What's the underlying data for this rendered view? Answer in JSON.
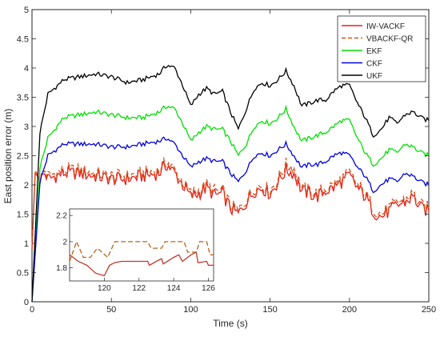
{
  "chart_data": [
    {
      "type": "line",
      "xlabel": "Time (s)",
      "ylabel": "East position error (m)",
      "xlim": [
        0,
        250
      ],
      "ylim": [
        0,
        5
      ],
      "xticks": [
        "0",
        "50",
        "100",
        "150",
        "200",
        "250"
      ],
      "yticks": [
        "0",
        "0.5",
        "1",
        "1.5",
        "2",
        "2.5",
        "3",
        "3.5",
        "4",
        "4.5",
        "5"
      ],
      "grid": false,
      "legend_position": "top-right",
      "series": [
        {
          "name": "IW-VACKF",
          "color": "#e3201b",
          "style": "solid",
          "x": [
            0,
            2,
            5,
            8,
            10,
            20,
            30,
            40,
            50,
            60,
            70,
            80,
            85,
            90,
            95,
            100,
            105,
            110,
            115,
            120,
            125,
            130,
            135,
            140,
            145,
            150,
            155,
            160,
            165,
            170,
            175,
            180,
            185,
            190,
            195,
            200,
            205,
            210,
            215,
            220,
            225,
            230,
            235,
            240,
            245,
            250
          ],
          "values": [
            0.9,
            2.2,
            2.1,
            2.2,
            2.1,
            2.2,
            2.2,
            2.15,
            2.1,
            2.1,
            2.15,
            2.2,
            2.35,
            2.2,
            2.0,
            1.8,
            1.85,
            1.95,
            1.82,
            1.85,
            1.6,
            1.5,
            1.7,
            1.9,
            1.95,
            1.85,
            2.05,
            2.25,
            2.2,
            1.9,
            1.85,
            1.8,
            1.9,
            1.95,
            2.05,
            2.15,
            1.95,
            1.8,
            1.55,
            1.45,
            1.55,
            1.65,
            1.7,
            1.8,
            1.6,
            1.55
          ]
        },
        {
          "name": "VBACKF-QR",
          "color": "#d95319",
          "style": "dashed",
          "x": [
            0,
            2,
            5,
            8,
            10,
            20,
            30,
            40,
            50,
            60,
            70,
            80,
            85,
            90,
            95,
            100,
            105,
            110,
            115,
            120,
            125,
            130,
            135,
            140,
            145,
            150,
            155,
            160,
            165,
            170,
            175,
            180,
            185,
            190,
            195,
            200,
            205,
            210,
            215,
            220,
            225,
            230,
            235,
            240,
            245,
            250
          ],
          "values": [
            0.95,
            2.25,
            2.1,
            2.25,
            2.15,
            2.25,
            2.25,
            2.2,
            2.15,
            2.15,
            2.2,
            2.25,
            2.4,
            2.25,
            2.05,
            1.85,
            1.9,
            2.0,
            1.9,
            1.9,
            1.65,
            1.55,
            1.75,
            1.95,
            2.0,
            1.9,
            2.1,
            2.35,
            2.3,
            1.95,
            1.9,
            1.85,
            1.95,
            2.0,
            2.1,
            2.2,
            2.0,
            1.85,
            1.6,
            1.5,
            1.6,
            1.7,
            1.75,
            1.85,
            1.65,
            1.6
          ]
        },
        {
          "name": "EKF",
          "color": "#00e000",
          "style": "solid",
          "x": [
            0,
            5,
            10,
            20,
            30,
            40,
            50,
            60,
            70,
            80,
            85,
            90,
            95,
            100,
            105,
            110,
            115,
            120,
            125,
            130,
            135,
            140,
            145,
            150,
            155,
            160,
            165,
            170,
            175,
            180,
            185,
            190,
            195,
            200,
            205,
            210,
            215,
            220,
            225,
            230,
            235,
            240,
            245,
            250
          ],
          "values": [
            0.0,
            2.3,
            2.8,
            3.15,
            3.2,
            3.25,
            3.2,
            3.15,
            3.15,
            3.25,
            3.35,
            3.3,
            3.05,
            2.75,
            2.9,
            3.0,
            2.95,
            2.95,
            2.75,
            2.5,
            2.7,
            3.0,
            3.1,
            3.05,
            3.15,
            3.3,
            3.0,
            2.75,
            2.8,
            2.85,
            2.9,
            3.0,
            3.1,
            3.1,
            2.8,
            2.55,
            2.35,
            2.45,
            2.6,
            2.55,
            2.7,
            2.65,
            2.55,
            2.5
          ]
        },
        {
          "name": "CKF",
          "color": "#0000dd",
          "style": "solid",
          "x": [
            0,
            5,
            10,
            20,
            30,
            40,
            50,
            60,
            70,
            80,
            85,
            90,
            95,
            100,
            105,
            110,
            115,
            120,
            125,
            130,
            135,
            140,
            145,
            150,
            155,
            160,
            165,
            170,
            175,
            180,
            185,
            190,
            195,
            200,
            205,
            210,
            215,
            220,
            225,
            230,
            235,
            240,
            245,
            250
          ],
          "values": [
            0.0,
            2.05,
            2.5,
            2.7,
            2.7,
            2.7,
            2.65,
            2.65,
            2.7,
            2.75,
            2.8,
            2.7,
            2.5,
            2.3,
            2.4,
            2.45,
            2.4,
            2.4,
            2.2,
            2.05,
            2.25,
            2.5,
            2.55,
            2.5,
            2.6,
            2.7,
            2.5,
            2.3,
            2.35,
            2.35,
            2.4,
            2.5,
            2.55,
            2.5,
            2.3,
            2.15,
            1.9,
            2.0,
            2.1,
            2.05,
            2.2,
            2.15,
            2.05,
            2.0
          ]
        },
        {
          "name": "UKF",
          "color": "#000000",
          "style": "solid",
          "x": [
            0,
            5,
            10,
            20,
            30,
            40,
            50,
            60,
            70,
            80,
            85,
            90,
            95,
            100,
            105,
            110,
            115,
            120,
            125,
            130,
            135,
            140,
            145,
            150,
            155,
            160,
            165,
            170,
            175,
            180,
            185,
            190,
            195,
            200,
            205,
            210,
            215,
            220,
            225,
            230,
            235,
            240,
            245,
            250
          ],
          "values": [
            0.0,
            2.9,
            3.55,
            3.8,
            3.85,
            3.9,
            3.85,
            3.75,
            3.8,
            3.9,
            4.05,
            4.0,
            3.7,
            3.35,
            3.55,
            3.65,
            3.55,
            3.6,
            3.25,
            2.95,
            3.3,
            3.65,
            3.75,
            3.7,
            3.8,
            3.95,
            3.7,
            3.35,
            3.4,
            3.45,
            3.45,
            3.6,
            3.7,
            3.7,
            3.4,
            3.15,
            2.85,
            2.95,
            3.15,
            3.05,
            3.2,
            3.25,
            3.15,
            3.1
          ]
        }
      ]
    },
    {
      "type": "line",
      "xlabel": "",
      "ylabel": "",
      "xlim": [
        118,
        126.3
      ],
      "ylim": [
        1.7,
        2.25
      ],
      "xticks": [
        "120",
        "122",
        "124",
        "126"
      ],
      "yticks": [
        "1.8",
        "2",
        "2.2"
      ],
      "grid": false,
      "series": [
        {
          "color": "#c0392b",
          "style": "solid",
          "x": [
            118,
            118.5,
            119,
            119.5,
            120,
            120.3,
            120.6,
            121,
            121.5,
            122,
            122.5,
            122.6,
            123,
            123.3,
            123.4,
            124,
            124.3,
            124.5,
            125,
            125.3,
            125.4,
            125.9,
            126,
            126.3
          ],
          "values": [
            1.9,
            1.85,
            1.82,
            1.76,
            1.74,
            1.82,
            1.84,
            1.85,
            1.85,
            1.85,
            1.85,
            1.82,
            1.85,
            1.87,
            1.83,
            1.88,
            1.9,
            1.85,
            1.9,
            1.92,
            1.84,
            1.85,
            1.82,
            1.82
          ]
        },
        {
          "color": "#b5651d",
          "style": "dashed",
          "x": [
            118,
            118.4,
            118.8,
            119.2,
            119.6,
            120.2,
            120.6,
            122.5,
            122.7,
            123.3,
            123.5,
            124.6,
            124.8,
            125.3,
            125.5,
            125.9,
            126.1,
            126.3
          ],
          "values": [
            1.85,
            2.0,
            1.88,
            1.88,
            1.95,
            1.88,
            2.0,
            2.0,
            1.95,
            1.95,
            2.0,
            2.0,
            1.92,
            1.92,
            2.0,
            2.0,
            1.9,
            1.9
          ]
        }
      ]
    }
  ]
}
